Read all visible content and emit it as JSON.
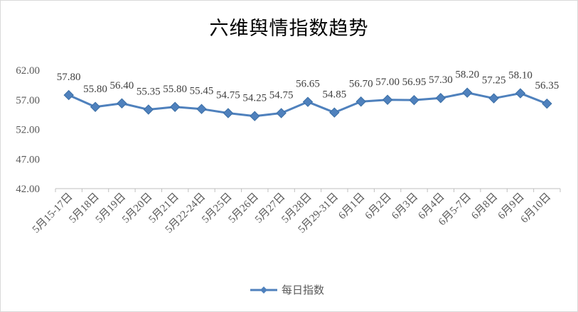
{
  "chart_data": {
    "type": "line",
    "title": "六维舆情指数趋势",
    "categories": [
      "5月15-17日",
      "5月18日",
      "5月19日",
      "5月20日",
      "5月21日",
      "5月22-24日",
      "5月25日",
      "5月26日",
      "5月27日",
      "5月28日",
      "5月29-31日",
      "6月1日",
      "6月2日",
      "6月3日",
      "6月4日",
      "6月5-7日",
      "6月8日",
      "6月9日",
      "6月10日"
    ],
    "series": [
      {
        "name": "每日指数",
        "values": [
          57.8,
          55.8,
          56.4,
          55.35,
          55.8,
          55.45,
          54.75,
          54.25,
          54.75,
          56.65,
          54.85,
          56.7,
          57.0,
          56.95,
          57.3,
          58.2,
          57.25,
          58.1,
          56.35
        ],
        "labels": [
          "57.80",
          "55.80",
          "56.40",
          "55.35",
          "55.80",
          "55.45",
          "54.75",
          "54.25",
          "54.75",
          "56.65",
          "54.85",
          "56.70",
          "57.00",
          "56.95",
          "57.30",
          "58.20",
          "57.25",
          "58.10",
          "56.35"
        ],
        "color": "#4f81bd"
      }
    ],
    "ylim": [
      42,
      62
    ],
    "yticks": [
      "42.00",
      "47.00",
      "52.00",
      "57.00",
      "62.00"
    ],
    "ytick_values": [
      42,
      47,
      52,
      57,
      62
    ],
    "grid": false,
    "legend": "bottom"
  }
}
